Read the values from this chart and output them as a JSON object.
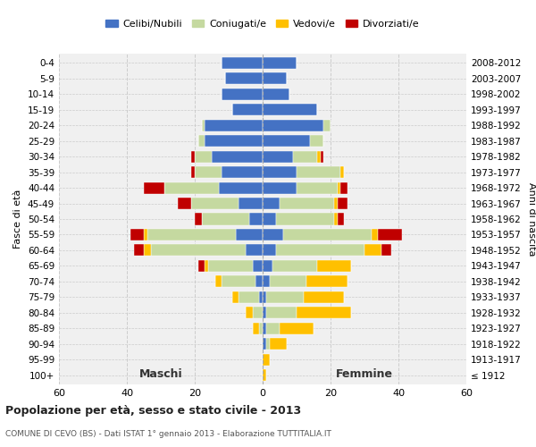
{
  "age_groups": [
    "0-4",
    "5-9",
    "10-14",
    "15-19",
    "20-24",
    "25-29",
    "30-34",
    "35-39",
    "40-44",
    "45-49",
    "50-54",
    "55-59",
    "60-64",
    "65-69",
    "70-74",
    "75-79",
    "80-84",
    "85-89",
    "90-94",
    "95-99",
    "100+"
  ],
  "birth_years": [
    "2008-2012",
    "2003-2007",
    "1998-2002",
    "1993-1997",
    "1988-1992",
    "1983-1987",
    "1978-1982",
    "1973-1977",
    "1968-1972",
    "1963-1967",
    "1958-1962",
    "1953-1957",
    "1948-1952",
    "1943-1947",
    "1938-1942",
    "1933-1937",
    "1928-1932",
    "1923-1927",
    "1918-1922",
    "1913-1917",
    "≤ 1912"
  ],
  "colors": {
    "celibi": "#4472c4",
    "coniugati": "#c5d9a0",
    "vedovi": "#ffc000",
    "divorziati": "#c00000"
  },
  "males": {
    "celibi": [
      12,
      11,
      12,
      9,
      17,
      17,
      15,
      12,
      13,
      7,
      4,
      8,
      5,
      3,
      2,
      1,
      0,
      0,
      0,
      0,
      0
    ],
    "coniugati": [
      0,
      0,
      0,
      0,
      1,
      2,
      5,
      8,
      16,
      14,
      14,
      26,
      28,
      13,
      10,
      6,
      3,
      1,
      0,
      0,
      0
    ],
    "vedovi": [
      0,
      0,
      0,
      0,
      0,
      0,
      0,
      0,
      0,
      0,
      0,
      1,
      2,
      1,
      2,
      2,
      2,
      2,
      0,
      0,
      0
    ],
    "divorziati": [
      0,
      0,
      0,
      0,
      0,
      0,
      1,
      1,
      6,
      4,
      2,
      4,
      3,
      2,
      0,
      0,
      0,
      0,
      0,
      0,
      0
    ]
  },
  "females": {
    "celibi": [
      10,
      7,
      8,
      16,
      18,
      14,
      9,
      10,
      10,
      5,
      4,
      6,
      4,
      3,
      2,
      1,
      1,
      1,
      1,
      0,
      0
    ],
    "coniugati": [
      0,
      0,
      0,
      0,
      2,
      4,
      7,
      13,
      12,
      16,
      17,
      26,
      26,
      13,
      11,
      11,
      9,
      4,
      1,
      0,
      0
    ],
    "vedovi": [
      0,
      0,
      0,
      0,
      0,
      0,
      1,
      1,
      1,
      1,
      1,
      2,
      5,
      10,
      12,
      12,
      16,
      10,
      5,
      2,
      1
    ],
    "divorziati": [
      0,
      0,
      0,
      0,
      0,
      0,
      1,
      0,
      2,
      3,
      2,
      7,
      3,
      0,
      0,
      0,
      0,
      0,
      0,
      0,
      0
    ]
  },
  "title": "Popolazione per età, sesso e stato civile - 2013",
  "subtitle": "COMUNE DI CEVO (BS) - Dati ISTAT 1° gennaio 2013 - Elaborazione TUTTITALIA.IT",
  "xlabel_left": "Maschi",
  "xlabel_right": "Femmine",
  "ylabel_left": "Fasce di età",
  "ylabel_right": "Anni di nascita",
  "xlim": 60,
  "background_color": "#f0f0f0",
  "bar_height": 0.75,
  "legend_labels": [
    "Celibi/Nubili",
    "Coniugati/e",
    "Vedovi/e",
    "Divorziati/e"
  ]
}
